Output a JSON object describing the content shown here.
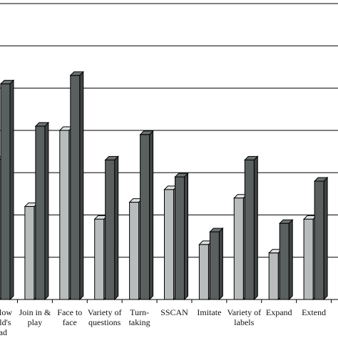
{
  "chart_data": {
    "type": "bar",
    "style": "3d-clustered",
    "categories": [
      [
        "Follow",
        "child's",
        "lead"
      ],
      [
        "Join in &",
        "play"
      ],
      [
        "Face to",
        "face"
      ],
      [
        "Variety of",
        "questions"
      ],
      [
        "Turn-",
        "taking"
      ],
      [
        "SSCAN"
      ],
      [
        "Imitate"
      ],
      [
        "Variety of",
        "labels"
      ],
      [
        "Expand"
      ],
      [
        "Extend"
      ]
    ],
    "series": [
      {
        "values": [
          3.3,
          2.2,
          4.0,
          1.9,
          2.3,
          2.6,
          1.3,
          2.4,
          1.1,
          1.9
        ]
      },
      {
        "values": [
          5.1,
          4.1,
          5.3,
          3.3,
          3.9,
          2.9,
          1.6,
          3.3,
          1.8,
          2.8
        ]
      }
    ],
    "colors": [
      "#b9bcbc",
      "#5a5f60"
    ],
    "ylim": [
      0,
      7
    ],
    "grid": true,
    "legend": "none",
    "title": "",
    "xlabel": "",
    "ylabel": ""
  }
}
